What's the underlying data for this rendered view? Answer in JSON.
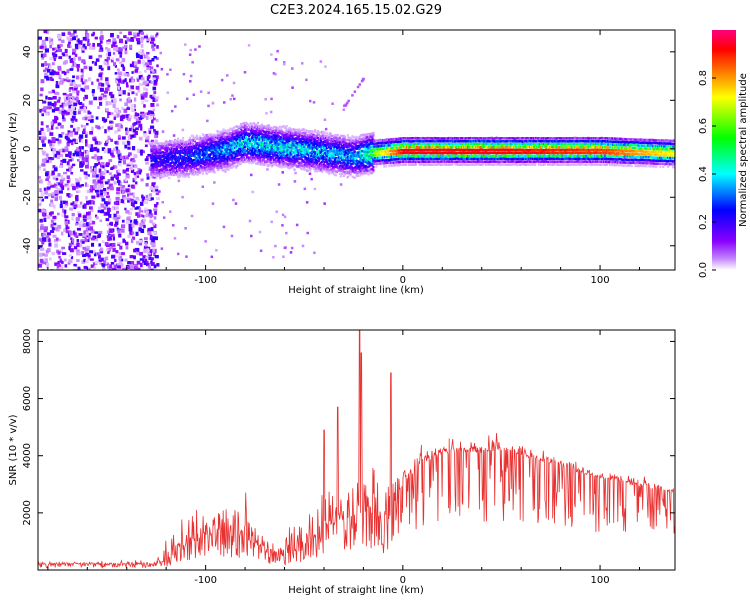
{
  "title": "C2E3.2024.165.15.02.G29",
  "chart_data": [
    {
      "type": "heatmap",
      "xlabel": "Height of straight line (km)",
      "ylabel": "Frequency (Hz)",
      "xlim": [
        -185,
        138
      ],
      "ylim": [
        -50,
        49
      ],
      "xticks": [
        -100,
        0,
        100
      ],
      "yticks": [
        -40,
        -20,
        0,
        20,
        40
      ],
      "colorbar": {
        "label": "Normalized spectral amplitude",
        "range": [
          0,
          1
        ],
        "ticks": [
          0.0,
          0.2,
          0.4,
          0.6,
          0.8
        ],
        "tick_labels": [
          "0.0",
          "0.2",
          "0.4",
          "0.6",
          "0.8"
        ],
        "colormap": [
          "#ffffff",
          "#8a00ff",
          "#0000ff",
          "#00ffff",
          "#00ff00",
          "#ffff00",
          "#ff8000",
          "#ff0000",
          "#ff0080"
        ]
      },
      "ridge": {
        "description_points_x": [
          -125,
          -110,
          -90,
          -80,
          -60,
          -40,
          -25,
          -15,
          0,
          50,
          100,
          135
        ],
        "description_points_freq": [
          -4,
          -3,
          0,
          3,
          1,
          -1,
          -3,
          -1,
          0,
          0,
          0,
          -1
        ],
        "peak_amplitude": [
          0.25,
          0.3,
          0.4,
          0.45,
          0.45,
          0.4,
          0.4,
          0.6,
          0.9,
          0.9,
          0.85,
          0.7
        ]
      },
      "noise_region_x": [
        -185,
        -125
      ],
      "streak": {
        "x": [
          -30,
          -20
        ],
        "freq": [
          18,
          30
        ]
      }
    },
    {
      "type": "line",
      "color": "#e83030",
      "xlabel": "Height of straight line (km)",
      "ylabel": "SNR (10 * v/v)",
      "xlim": [
        -185,
        138
      ],
      "ylim": [
        0,
        8400
      ],
      "xticks": [
        -100,
        0,
        100
      ],
      "yticks": [
        2000,
        4000,
        6000,
        8000
      ],
      "envelope_x": [
        -185,
        -125,
        -118,
        -105,
        -95,
        -85,
        -75,
        -65,
        -55,
        -45,
        -35,
        -28,
        -22,
        -18,
        -15,
        -8,
        -5,
        0,
        10,
        20,
        30,
        40,
        50,
        60,
        70,
        80,
        90,
        100,
        110,
        120,
        130,
        138
      ],
      "envelope_base": [
        200,
        200,
        300,
        800,
        1100,
        1100,
        900,
        400,
        500,
        900,
        1400,
        1700,
        1900,
        2000,
        1800,
        1300,
        2000,
        3000,
        3700,
        4000,
        4100,
        4100,
        4200,
        4000,
        3800,
        3600,
        3400,
        3200,
        3100,
        2900,
        2800,
        2700
      ],
      "envelope_spread": [
        100,
        150,
        900,
        1400,
        1600,
        1800,
        1500,
        900,
        1300,
        1800,
        2000,
        2100,
        2300,
        2400,
        2300,
        2000,
        1100,
        900,
        700,
        700,
        650,
        600,
        600,
        550,
        500,
        450,
        400,
        380,
        350,
        330,
        320,
        300
      ],
      "spikes": [
        {
          "x": -22,
          "y": 8400
        },
        {
          "x": -21,
          "y": 7600
        },
        {
          "x": -6,
          "y": 6900
        },
        {
          "x": -33,
          "y": 5700
        },
        {
          "x": -40,
          "y": 4900
        }
      ]
    }
  ]
}
